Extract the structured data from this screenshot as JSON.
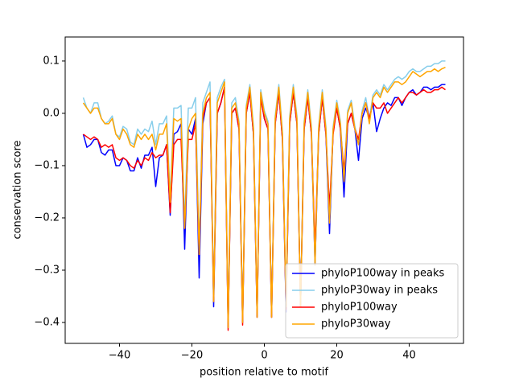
{
  "chart_data": {
    "type": "line",
    "xlabel": "position relative to motif",
    "ylabel": "conservation score",
    "x": [
      -50,
      -49,
      -48,
      -47,
      -46,
      -45,
      -44,
      -43,
      -42,
      -41,
      -40,
      -39,
      -38,
      -37,
      -36,
      -35,
      -34,
      -33,
      -32,
      -31,
      -30,
      -29,
      -28,
      -27,
      -26,
      -25,
      -24,
      -23,
      -22,
      -21,
      -20,
      -19,
      -18,
      -17,
      -16,
      -15,
      -14,
      -13,
      -12,
      -11,
      -10,
      -9,
      -8,
      -7,
      -6,
      -5,
      -4,
      -3,
      -2,
      -1,
      0,
      1,
      2,
      3,
      4,
      5,
      6,
      7,
      8,
      9,
      10,
      11,
      12,
      13,
      14,
      15,
      16,
      17,
      18,
      19,
      20,
      21,
      22,
      23,
      24,
      25,
      26,
      27,
      28,
      29,
      30,
      31,
      32,
      33,
      34,
      35,
      36,
      37,
      38,
      39,
      40,
      41,
      42,
      43,
      44,
      45,
      46,
      47,
      48,
      49,
      50
    ],
    "series": [
      {
        "name": "phyloP100way in peaks",
        "color": "#0000ff",
        "values": [
          -0.04,
          -0.065,
          -0.06,
          -0.05,
          -0.05,
          -0.075,
          -0.08,
          -0.07,
          -0.07,
          -0.1,
          -0.1,
          -0.085,
          -0.09,
          -0.11,
          -0.11,
          -0.085,
          -0.105,
          -0.08,
          -0.08,
          -0.065,
          -0.14,
          -0.085,
          -0.08,
          -0.06,
          -0.195,
          -0.04,
          -0.035,
          -0.02,
          -0.26,
          -0.03,
          -0.04,
          -0.01,
          -0.315,
          -0.02,
          0.02,
          0.03,
          -0.37,
          0.0,
          0.02,
          0.05,
          -0.41,
          0.0,
          0.01,
          -0.03,
          -0.4,
          0.0,
          0.04,
          -0.04,
          -0.39,
          0.03,
          -0.01,
          -0.03,
          -0.39,
          -0.02,
          0.04,
          -0.05,
          -0.38,
          -0.02,
          0.04,
          -0.02,
          -0.37,
          -0.03,
          0.03,
          -0.04,
          -0.29,
          -0.04,
          0.03,
          -0.04,
          -0.23,
          -0.03,
          0.01,
          -0.03,
          -0.16,
          -0.02,
          0.0,
          -0.03,
          -0.09,
          -0.01,
          0.01,
          -0.01,
          0.02,
          -0.035,
          -0.01,
          0.01,
          0.02,
          0.015,
          0.03,
          0.03,
          0.015,
          0.03,
          0.04,
          0.045,
          0.035,
          0.04,
          0.05,
          0.05,
          0.045,
          0.05,
          0.05,
          0.055,
          0.055
        ]
      },
      {
        "name": "phyloP30way in peaks",
        "color": "#87ceeb",
        "values": [
          0.03,
          0.01,
          0.0,
          0.02,
          0.02,
          -0.01,
          -0.02,
          -0.015,
          -0.005,
          -0.04,
          -0.045,
          -0.025,
          -0.03,
          -0.055,
          -0.06,
          -0.03,
          -0.04,
          -0.03,
          -0.035,
          -0.015,
          -0.06,
          -0.02,
          -0.02,
          -0.005,
          -0.16,
          0.01,
          0.01,
          0.015,
          -0.21,
          0.01,
          0.01,
          0.03,
          -0.26,
          0.02,
          0.04,
          0.06,
          -0.35,
          0.03,
          0.05,
          0.065,
          -0.4,
          0.02,
          0.03,
          -0.015,
          -0.395,
          0.015,
          0.055,
          -0.025,
          -0.385,
          0.045,
          0.005,
          -0.015,
          -0.385,
          -0.005,
          0.055,
          -0.035,
          -0.365,
          -0.005,
          0.055,
          -0.005,
          -0.365,
          -0.015,
          0.045,
          -0.025,
          -0.285,
          -0.025,
          0.045,
          -0.025,
          -0.205,
          -0.025,
          0.025,
          -0.015,
          -0.125,
          0.005,
          0.025,
          -0.025,
          -0.055,
          0.005,
          0.03,
          -0.01,
          0.035,
          0.045,
          0.035,
          0.055,
          0.045,
          0.055,
          0.065,
          0.07,
          0.065,
          0.07,
          0.08,
          0.085,
          0.08,
          0.08,
          0.085,
          0.09,
          0.09,
          0.095,
          0.095,
          0.1,
          0.1
        ]
      },
      {
        "name": "phyloP100way",
        "color": "#ff0000",
        "values": [
          -0.04,
          -0.045,
          -0.05,
          -0.045,
          -0.05,
          -0.065,
          -0.06,
          -0.065,
          -0.06,
          -0.085,
          -0.09,
          -0.085,
          -0.09,
          -0.1,
          -0.105,
          -0.09,
          -0.1,
          -0.085,
          -0.09,
          -0.075,
          -0.085,
          -0.08,
          -0.08,
          -0.06,
          -0.19,
          -0.06,
          -0.05,
          -0.05,
          -0.22,
          -0.05,
          -0.05,
          -0.02,
          -0.27,
          -0.01,
          0.02,
          0.03,
          -0.36,
          0.0,
          0.02,
          0.05,
          -0.415,
          0.0,
          0.01,
          -0.03,
          -0.405,
          0.0,
          0.04,
          -0.04,
          -0.39,
          0.03,
          -0.01,
          -0.03,
          -0.39,
          -0.02,
          0.04,
          -0.05,
          -0.375,
          -0.02,
          0.04,
          -0.02,
          -0.37,
          -0.03,
          0.03,
          -0.04,
          -0.26,
          -0.04,
          0.03,
          -0.04,
          -0.18,
          -0.04,
          0.01,
          -0.03,
          -0.11,
          -0.02,
          0.0,
          -0.03,
          -0.05,
          0.0,
          0.02,
          -0.01,
          0.02,
          0.01,
          0.01,
          0.02,
          0.0,
          0.01,
          0.02,
          0.03,
          0.02,
          0.03,
          0.04,
          0.04,
          0.035,
          0.04,
          0.045,
          0.04,
          0.04,
          0.045,
          0.045,
          0.05,
          0.045
        ]
      },
      {
        "name": "phyloP30way",
        "color": "#ffa500",
        "values": [
          0.02,
          0.01,
          0.0,
          0.01,
          0.01,
          -0.01,
          -0.02,
          -0.02,
          -0.01,
          -0.04,
          -0.05,
          -0.03,
          -0.04,
          -0.06,
          -0.065,
          -0.04,
          -0.05,
          -0.04,
          -0.05,
          -0.04,
          -0.07,
          -0.04,
          -0.04,
          -0.02,
          -0.17,
          -0.01,
          -0.015,
          -0.01,
          -0.22,
          -0.03,
          -0.01,
          0.0,
          -0.27,
          0.0,
          0.03,
          0.04,
          -0.36,
          0.02,
          0.04,
          0.06,
          -0.41,
          0.01,
          0.02,
          -0.02,
          -0.4,
          0.01,
          0.05,
          -0.03,
          -0.39,
          0.04,
          0.0,
          -0.02,
          -0.39,
          -0.01,
          0.05,
          -0.04,
          -0.37,
          -0.01,
          0.05,
          -0.01,
          -0.37,
          -0.02,
          0.04,
          -0.03,
          -0.29,
          -0.03,
          0.04,
          -0.03,
          -0.21,
          -0.03,
          0.02,
          -0.02,
          -0.13,
          0.0,
          0.02,
          -0.03,
          -0.06,
          0.0,
          0.02,
          -0.02,
          0.03,
          0.04,
          0.03,
          0.05,
          0.04,
          0.05,
          0.06,
          0.06,
          0.055,
          0.06,
          0.07,
          0.08,
          0.075,
          0.07,
          0.075,
          0.08,
          0.08,
          0.085,
          0.08,
          0.085,
          0.088
        ]
      }
    ],
    "xlim": [
      -55,
      55
    ],
    "xticks": [
      {
        "value": -40,
        "label": "−40"
      },
      {
        "value": -20,
        "label": "−20"
      },
      0,
      20,
      40
    ],
    "ylim": [
      -0.44,
      0.146
    ],
    "yticks": [
      {
        "value": -0.4,
        "label": "−0.4"
      },
      {
        "value": -0.3,
        "label": "−0.3"
      },
      {
        "value": -0.2,
        "label": "−0.2"
      },
      {
        "value": -0.1,
        "label": "−0.1"
      },
      {
        "value": 0.0,
        "label": "0.0"
      },
      {
        "value": 0.1,
        "label": "0.1"
      }
    ],
    "legend": "lower right"
  }
}
